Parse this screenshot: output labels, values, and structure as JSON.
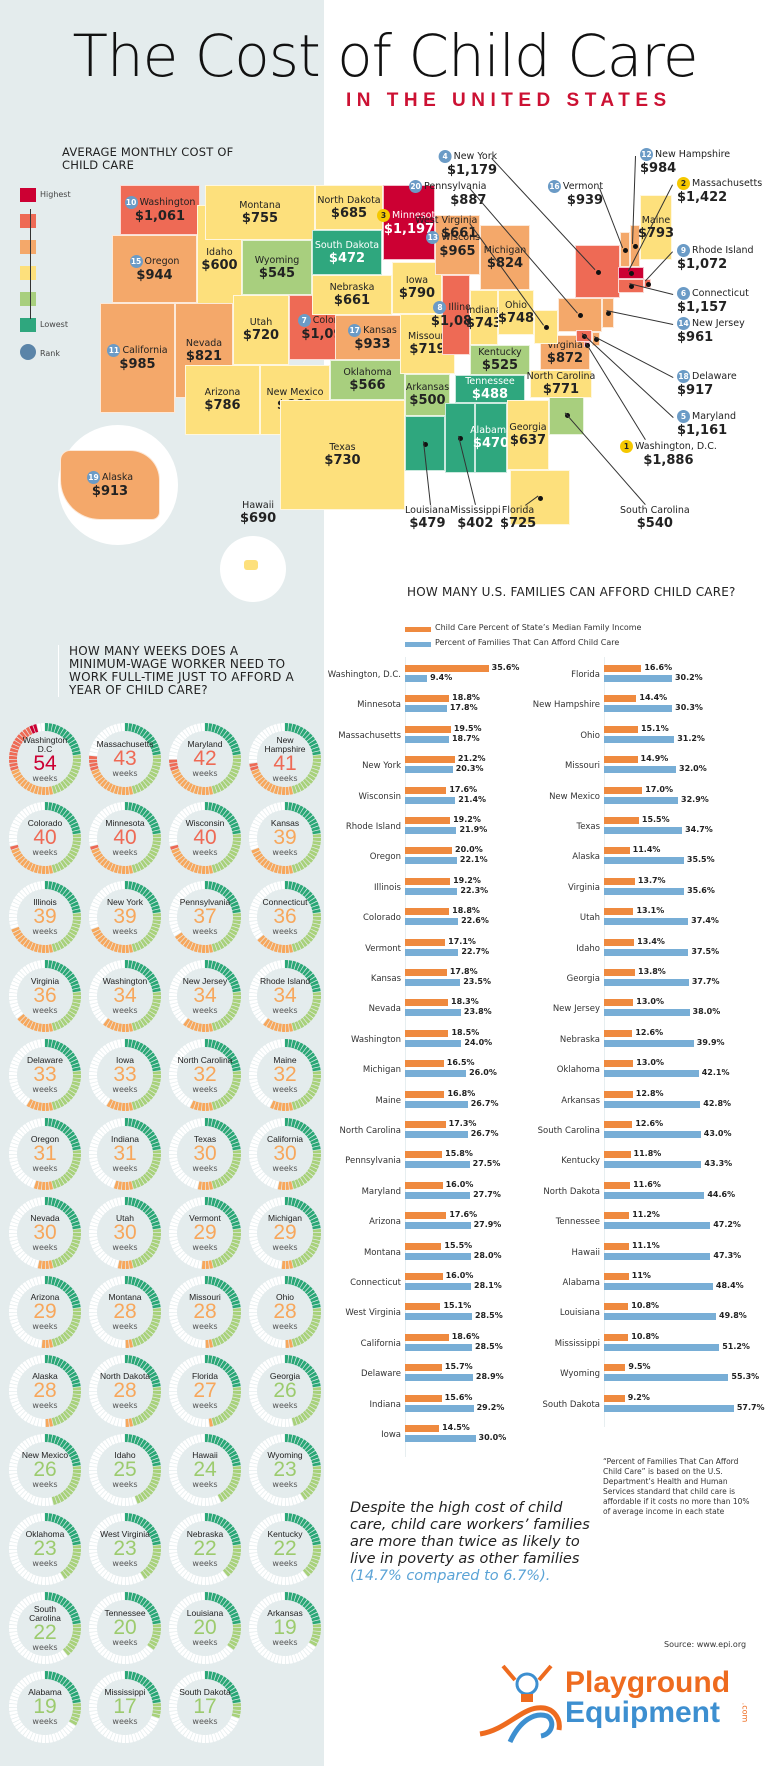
{
  "header": {
    "title": "The Cost of Child Care",
    "subtitle": "IN THE UNITED STATES"
  },
  "colors": {
    "highest": "#cc0033",
    "high": "#ee6a55",
    "mid_high": "#f4a86a",
    "mid": "#fde07c",
    "low": "#a8cf7e",
    "lowest": "#2fa77e",
    "rank": "#6b9bc6",
    "rank_gold": "#f5c800",
    "bar_income": "#ef8a3f",
    "bar_afford": "#78aed6",
    "accent_red": "#cc1133",
    "quote_highlight": "#5aa3d6"
  },
  "map": {
    "title": "AVERAGE MONTHLY COST OF CHILD CARE",
    "legend": {
      "highest": "Highest",
      "lowest": "Lowest",
      "rank": "Rank"
    },
    "states": [
      {
        "name": "Washington",
        "value": "$1,061",
        "tier": "high",
        "rank": "10"
      },
      {
        "name": "Oregon",
        "value": "$944",
        "tier": "mid_high",
        "rank": "15"
      },
      {
        "name": "California",
        "value": "$985",
        "tier": "mid_high",
        "rank": "11"
      },
      {
        "name": "Idaho",
        "value": "$600",
        "tier": "mid"
      },
      {
        "name": "Nevada",
        "value": "$821",
        "tier": "mid_high"
      },
      {
        "name": "Montana",
        "value": "$755",
        "tier": "mid"
      },
      {
        "name": "Wyoming",
        "value": "$545",
        "tier": "low"
      },
      {
        "name": "Utah",
        "value": "$720",
        "tier": "mid"
      },
      {
        "name": "Arizona",
        "value": "$786",
        "tier": "mid"
      },
      {
        "name": "Colorado",
        "value": "$1,096",
        "tier": "high",
        "rank": "7"
      },
      {
        "name": "New Mexico",
        "value": "$662",
        "tier": "mid"
      },
      {
        "name": "North Dakota",
        "value": "$685",
        "tier": "mid"
      },
      {
        "name": "South Dakota",
        "value": "$472",
        "tier": "lowest"
      },
      {
        "name": "Nebraska",
        "value": "$661",
        "tier": "mid"
      },
      {
        "name": "Kansas",
        "value": "$933",
        "tier": "mid_high",
        "rank": "17"
      },
      {
        "name": "Oklahoma",
        "value": "$566",
        "tier": "low"
      },
      {
        "name": "Texas",
        "value": "$730",
        "tier": "mid"
      },
      {
        "name": "Minnesota",
        "value": "$1,197",
        "tier": "highest",
        "rank": "3"
      },
      {
        "name": "Iowa",
        "value": "$790",
        "tier": "mid"
      },
      {
        "name": "Missouri",
        "value": "$719",
        "tier": "mid"
      },
      {
        "name": "Arkansas",
        "value": "$500",
        "tier": "low"
      },
      {
        "name": "Louisiana",
        "value": "$479",
        "tier": "lowest"
      },
      {
        "name": "Wisconsin",
        "value": "$965",
        "tier": "mid_high",
        "rank": "13"
      },
      {
        "name": "Illinois",
        "value": "$1,080",
        "tier": "high",
        "rank": "8"
      },
      {
        "name": "Michigan",
        "value": "$824",
        "tier": "mid_high"
      },
      {
        "name": "Indiana",
        "value": "$743",
        "tier": "mid"
      },
      {
        "name": "Ohio",
        "value": "$748",
        "tier": "mid"
      },
      {
        "name": "Kentucky",
        "value": "$525",
        "tier": "low"
      },
      {
        "name": "Tennessee",
        "value": "$488",
        "tier": "lowest"
      },
      {
        "name": "Mississippi",
        "value": "$402",
        "tier": "lowest"
      },
      {
        "name": "Alabama",
        "value": "$470",
        "tier": "lowest"
      },
      {
        "name": "Georgia",
        "value": "$637",
        "tier": "mid"
      },
      {
        "name": "Florida",
        "value": "$725",
        "tier": "mid"
      },
      {
        "name": "South Carolina",
        "value": "$540",
        "tier": "low"
      },
      {
        "name": "North Carolina",
        "value": "$771",
        "tier": "mid"
      },
      {
        "name": "Virginia",
        "value": "$872",
        "tier": "mid_high"
      },
      {
        "name": "West Virginia",
        "value": "$661",
        "tier": "mid"
      },
      {
        "name": "Pennsylvania",
        "value": "$887",
        "tier": "mid_high",
        "rank": "20"
      },
      {
        "name": "New York",
        "value": "$1,179",
        "tier": "high",
        "rank": "4"
      },
      {
        "name": "Vermont",
        "value": "$939",
        "tier": "mid_high",
        "rank": "16"
      },
      {
        "name": "New Hampshire",
        "value": "$984",
        "tier": "mid_high",
        "rank": "12"
      },
      {
        "name": "Maine",
        "value": "$793",
        "tier": "mid"
      },
      {
        "name": "Massachusetts",
        "value": "$1,422",
        "tier": "highest",
        "rank": "2"
      },
      {
        "name": "Rhode Island",
        "value": "$1,072",
        "tier": "high",
        "rank": "9"
      },
      {
        "name": "Connecticut",
        "value": "$1,157",
        "tier": "high",
        "rank": "6"
      },
      {
        "name": "New Jersey",
        "value": "$961",
        "tier": "mid_high",
        "rank": "14"
      },
      {
        "name": "Delaware",
        "value": "$917",
        "tier": "mid_high",
        "rank": "18"
      },
      {
        "name": "Maryland",
        "value": "$1,161",
        "tier": "high",
        "rank": "5"
      },
      {
        "name": "Washington, D.C.",
        "value": "$1,886",
        "tier": "highest",
        "rank": "1"
      },
      {
        "name": "Alaska",
        "value": "$913",
        "tier": "mid_high",
        "rank": "19"
      },
      {
        "name": "Hawaii",
        "value": "$690",
        "tier": "mid"
      }
    ]
  },
  "weeks": {
    "title": "HOW MANY WEEKS DOES A MINIMUM-WAGE WORKER NEED TO WORK FULL-TIME JUST TO AFFORD A YEAR OF CHILD CARE?",
    "unit": "weeks",
    "items": [
      {
        "name": "Washington D.C",
        "value": 54
      },
      {
        "name": "Massachusetts",
        "value": 43
      },
      {
        "name": "Maryland",
        "value": 42
      },
      {
        "name": "New Hampshire",
        "value": 41
      },
      {
        "name": "Colorado",
        "value": 40
      },
      {
        "name": "Minnesota",
        "value": 40
      },
      {
        "name": "Wisconsin",
        "value": 40
      },
      {
        "name": "Kansas",
        "value": 39
      },
      {
        "name": "Illinois",
        "value": 39
      },
      {
        "name": "New York",
        "value": 39
      },
      {
        "name": "Pennsylvania",
        "value": 37
      },
      {
        "name": "Connecticut",
        "value": 36
      },
      {
        "name": "Virginia",
        "value": 36
      },
      {
        "name": "Washington",
        "value": 34
      },
      {
        "name": "New Jersey",
        "value": 34
      },
      {
        "name": "Rhode Island",
        "value": 34
      },
      {
        "name": "Delaware",
        "value": 33
      },
      {
        "name": "Iowa",
        "value": 33
      },
      {
        "name": "North Carolina",
        "value": 32
      },
      {
        "name": "Maine",
        "value": 32
      },
      {
        "name": "Oregon",
        "value": 31
      },
      {
        "name": "Indiana",
        "value": 31
      },
      {
        "name": "Texas",
        "value": 30
      },
      {
        "name": "California",
        "value": 30
      },
      {
        "name": "Nevada",
        "value": 30
      },
      {
        "name": "Utah",
        "value": 30
      },
      {
        "name": "Vermont",
        "value": 29
      },
      {
        "name": "Michigan",
        "value": 29
      },
      {
        "name": "Arizona",
        "value": 29
      },
      {
        "name": "Montana",
        "value": 28
      },
      {
        "name": "Missouri",
        "value": 28
      },
      {
        "name": "Ohio",
        "value": 28
      },
      {
        "name": "Alaska",
        "value": 28
      },
      {
        "name": "North Dakota",
        "value": 28
      },
      {
        "name": "Florida",
        "value": 27
      },
      {
        "name": "Georgia",
        "value": 26
      },
      {
        "name": "New Mexico",
        "value": 26
      },
      {
        "name": "Idaho",
        "value": 25
      },
      {
        "name": "Hawaii",
        "value": 24
      },
      {
        "name": "Wyoming",
        "value": 23
      },
      {
        "name": "Oklahoma",
        "value": 23
      },
      {
        "name": "West Virginia",
        "value": 23
      },
      {
        "name": "Nebraska",
        "value": 22
      },
      {
        "name": "Kentucky",
        "value": 22
      },
      {
        "name": "South Carolina",
        "value": 22
      },
      {
        "name": "Tennessee",
        "value": 20
      },
      {
        "name": "Louisiana",
        "value": 20
      },
      {
        "name": "Arkansas",
        "value": 19
      },
      {
        "name": "Alabama",
        "value": 19
      },
      {
        "name": "Mississippi",
        "value": 17
      },
      {
        "name": "South Dakota",
        "value": 17
      }
    ]
  },
  "afford": {
    "title": "HOW MANY U.S. FAMILIES CAN AFFORD CHILD CARE?",
    "footnote": "“Percent of Families That Can Afford Child Care” is based on the U.S. Department’s Health and Human Services standard that child care is affordable if it costs no more than 10% of average income in each state"
  },
  "chart_data": {
    "type": "bar",
    "title": "HOW MANY U.S. FAMILIES CAN AFFORD CHILD CARE?",
    "orientation": "horizontal",
    "legend_position": "top-left",
    "grid": false,
    "series": [
      {
        "name": "Child Care Percent of State’s Median Family Income",
        "key": "income"
      },
      {
        "name": "Percent of Families That Can Afford Child Care",
        "key": "afford"
      }
    ],
    "columns": [
      [
        {
          "state": "Washington, D.C.",
          "income": 35.6,
          "afford": 9.4
        },
        {
          "state": "Minnesota",
          "income": 18.8,
          "afford": 17.8
        },
        {
          "state": "Massachusetts",
          "income": 19.5,
          "afford": 18.7
        },
        {
          "state": "New York",
          "income": 21.2,
          "afford": 20.3
        },
        {
          "state": "Wisconsin",
          "income": 17.6,
          "afford": 21.4
        },
        {
          "state": "Rhode Island",
          "income": 19.2,
          "afford": 21.9
        },
        {
          "state": "Oregon",
          "income": 20.0,
          "afford": 22.1
        },
        {
          "state": "Illinois",
          "income": 19.2,
          "afford": 22.3
        },
        {
          "state": "Colorado",
          "income": 18.8,
          "afford": 22.6
        },
        {
          "state": "Vermont",
          "income": 17.1,
          "afford": 22.7
        },
        {
          "state": "Kansas",
          "income": 17.8,
          "afford": 23.5
        },
        {
          "state": "Nevada",
          "income": 18.3,
          "afford": 23.8
        },
        {
          "state": "Washington",
          "income": 18.5,
          "afford": 24.0
        },
        {
          "state": "Michigan",
          "income": 16.5,
          "afford": 26.0
        },
        {
          "state": "Maine",
          "income": 16.8,
          "afford": 26.7
        },
        {
          "state": "North Carolina",
          "income": 17.3,
          "afford": 26.7
        },
        {
          "state": "Pennsylvania",
          "income": 15.8,
          "afford": 27.5
        },
        {
          "state": "Maryland",
          "income": 16.0,
          "afford": 27.7
        },
        {
          "state": "Arizona",
          "income": 17.6,
          "afford": 27.9
        },
        {
          "state": "Montana",
          "income": 15.5,
          "afford": 28.0
        },
        {
          "state": "Connecticut",
          "income": 16.0,
          "afford": 28.1
        },
        {
          "state": "West Virginia",
          "income": 15.1,
          "afford": 28.5
        },
        {
          "state": "California",
          "income": 18.6,
          "afford": 28.5
        },
        {
          "state": "Delaware",
          "income": 15.7,
          "afford": 28.9
        },
        {
          "state": "Indiana",
          "income": 15.6,
          "afford": 29.2
        },
        {
          "state": "Iowa",
          "income": 14.5,
          "afford": 30.0
        }
      ],
      [
        {
          "state": "Florida",
          "income": 16.6,
          "afford": 30.2
        },
        {
          "state": "New Hampshire",
          "income": 14.4,
          "afford": 30.3
        },
        {
          "state": "Ohio",
          "income": 15.1,
          "afford": 31.2
        },
        {
          "state": "Missouri",
          "income": 14.9,
          "afford": 32.0
        },
        {
          "state": "New Mexico",
          "income": 17.0,
          "afford": 32.9
        },
        {
          "state": "Texas",
          "income": 15.5,
          "afford": 34.7
        },
        {
          "state": "Alaska",
          "income": 11.4,
          "afford": 35.5
        },
        {
          "state": "Virginia",
          "income": 13.7,
          "afford": 35.6
        },
        {
          "state": "Utah",
          "income": 13.1,
          "afford": 37.4
        },
        {
          "state": "Idaho",
          "income": 13.4,
          "afford": 37.5
        },
        {
          "state": "Georgia",
          "income": 13.8,
          "afford": 37.7
        },
        {
          "state": "New Jersey",
          "income": 13.0,
          "afford": 38.0
        },
        {
          "state": "Nebraska",
          "income": 12.6,
          "afford": 39.9
        },
        {
          "state": "Oklahoma",
          "income": 13.0,
          "afford": 42.1
        },
        {
          "state": "Arkansas",
          "income": 12.8,
          "afford": 42.8
        },
        {
          "state": "South Carolina",
          "income": 12.6,
          "afford": 43.0
        },
        {
          "state": "Kentucky",
          "income": 11.8,
          "afford": 43.3
        },
        {
          "state": "North Dakota",
          "income": 11.6,
          "afford": 44.6
        },
        {
          "state": "Tennessee",
          "income": 11.2,
          "afford": 47.2
        },
        {
          "state": "Hawaii",
          "income": 11.1,
          "afford": 47.3
        },
        {
          "state": "Alabama",
          "income": 11,
          "afford": 48.4
        },
        {
          "state": "Louisiana",
          "income": 10.8,
          "afford": 49.8
        },
        {
          "state": "Mississippi",
          "income": 10.8,
          "afford": 51.2
        },
        {
          "state": "Wyoming",
          "income": 9.5,
          "afford": 55.3
        },
        {
          "state": "South Dakota",
          "income": 9.2,
          "afford": 57.7
        }
      ]
    ],
    "label_format": {
      "Alabama.income": "11%"
    }
  },
  "quote": {
    "text": "Despite the high cost of child care, child care workers’ families are more than twice as likely to live in poverty as other families",
    "highlight": "(14.7% compared to 6.7%)."
  },
  "source": "Source: www.epi.org",
  "logo": {
    "line1": "Playground",
    "line2": "Equipment",
    "suffix": ".com"
  }
}
